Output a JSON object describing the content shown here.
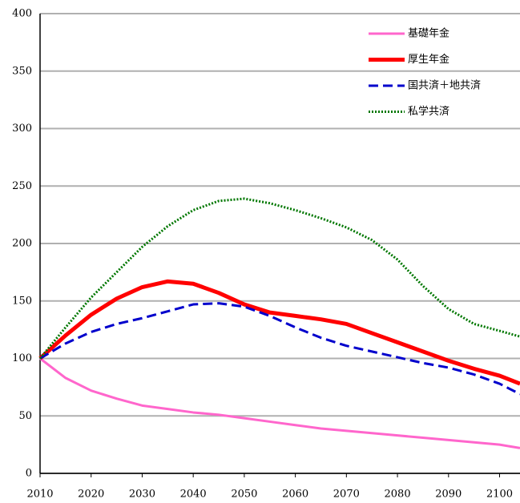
{
  "chart_data": {
    "type": "line",
    "x": [
      2010,
      2015,
      2020,
      2025,
      2030,
      2035,
      2040,
      2045,
      2050,
      2055,
      2060,
      2065,
      2070,
      2075,
      2080,
      2085,
      2090,
      2095,
      2100,
      2104
    ],
    "series": [
      {
        "name": "基礎年金",
        "color": "#ff66cc",
        "dash": "solid",
        "width": 3,
        "values": [
          100,
          83,
          72,
          65,
          59,
          56,
          53,
          51,
          48,
          45,
          42,
          39,
          37,
          35,
          33,
          31,
          29,
          27,
          25,
          22
        ]
      },
      {
        "name": "厚生年金",
        "color": "#ff0000",
        "dash": "solid",
        "width": 5,
        "values": [
          100,
          120,
          138,
          152,
          162,
          167,
          165,
          157,
          147,
          140,
          137,
          134,
          130,
          122,
          114,
          106,
          98,
          91,
          85,
          78
        ]
      },
      {
        "name": "国共済＋地共済",
        "color": "#0000cc",
        "dash": "dash",
        "width": 3,
        "values": [
          100,
          113,
          123,
          130,
          135,
          141,
          147,
          148,
          145,
          137,
          127,
          118,
          111,
          106,
          101,
          96,
          92,
          86,
          78,
          69
        ]
      },
      {
        "name": "私学共済",
        "color": "#007700",
        "dash": "dot",
        "width": 3,
        "values": [
          100,
          127,
          153,
          175,
          197,
          215,
          229,
          237,
          239,
          235,
          229,
          222,
          214,
          203,
          186,
          163,
          143,
          130,
          124,
          119
        ]
      }
    ],
    "xlim": [
      2010,
      2104
    ],
    "xticks": [
      2010,
      2020,
      2030,
      2040,
      2050,
      2060,
      2070,
      2080,
      2090,
      2100
    ],
    "ylim": [
      0,
      400
    ],
    "yticks": [
      0,
      50,
      100,
      150,
      200,
      250,
      300,
      350,
      400
    ],
    "grid": true,
    "legend": "top-right"
  }
}
